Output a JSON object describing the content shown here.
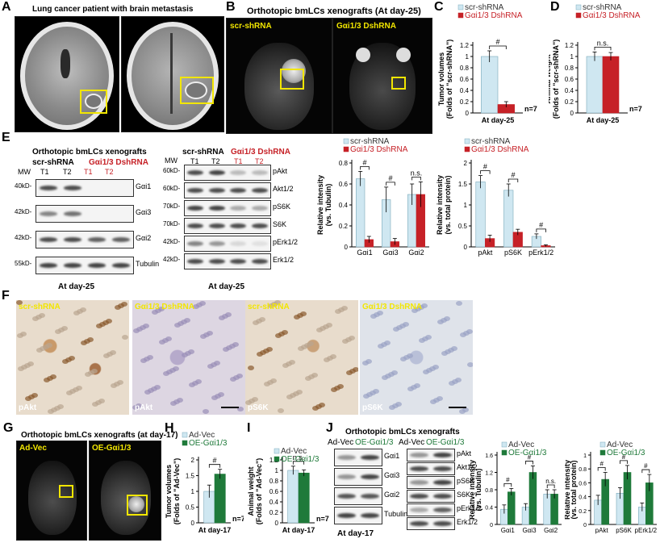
{
  "panels": {
    "A": {
      "label": "A",
      "title": "Lung cancer patient with brain metastasis"
    },
    "B": {
      "label": "B",
      "title": "Orthotopic bmLCs xenografts (At day-25)",
      "left": "scr-shRNA",
      "right": "Gαi1/3 DshRNA"
    },
    "C": {
      "label": "C",
      "ylabel1": "Tumor volumes",
      "ylabel2": "(Folds of \"scr-shRNA\")",
      "xlabel": "At day-25",
      "legend": [
        "scr-shRNA",
        "Gαi1/3 DshRNA"
      ],
      "sig": "#",
      "n": "n=7",
      "ticks": [
        "0",
        "0.2",
        "0.4",
        "0.6",
        "0.8",
        "1",
        "1.2"
      ]
    },
    "D": {
      "label": "D",
      "ylabel1": "Animal weight",
      "ylabel2": "(Folds of \"scr-shRNA\")",
      "xlabel": "At day-25",
      "legend": [
        "scr-shRNA",
        "Gαi1/3 DshRNA"
      ],
      "sig": "n.s.",
      "n": "n=7",
      "ticks": [
        "0",
        "0.2",
        "0.4",
        "0.6",
        "0.8",
        "1",
        "1.2"
      ]
    },
    "E": {
      "label": "E",
      "blot1_title": "Orthotopic bmLCs xenografts",
      "blot1_groups": [
        "scr-shRNA",
        "Gαi1/3 DshRNA"
      ],
      "mw": "MW",
      "lanes": [
        "T1",
        "T2",
        "T1",
        "T2"
      ],
      "blot1_rows": [
        {
          "kd": "40kD-",
          "name": "Gαi1"
        },
        {
          "kd": "42kD-",
          "name": "Gαi3"
        },
        {
          "kd": "42kD-",
          "name": "Gαi2"
        },
        {
          "kd": "55kD-",
          "name": "Tubulin"
        }
      ],
      "blot1_foot": "At day-25",
      "blot2_groups": [
        "scr-shRNA",
        "Gαi1/3 DshRNA"
      ],
      "blot2_rows": [
        {
          "kd": "60kD-",
          "name": "pAkt"
        },
        {
          "kd": "60kD-",
          "name": "Akt1/2"
        },
        {
          "kd": "70kD-",
          "name": "pS6K"
        },
        {
          "kd": "70kD-",
          "name": "S6K"
        },
        {
          "kd": "42kD-",
          "name": "pErk1/2"
        },
        {
          "kd": "42kD-",
          "name": "Erk1/2"
        }
      ],
      "blot2_foot": "At day-25",
      "chart1_ylabel1": "Relative intensity",
      "chart1_ylabel2": "(vs. Tubulin)",
      "chart2_ylabel1": "Relative intensity",
      "chart2_ylabel2": "(vs. total protein)",
      "legend": [
        "scr-shRNA",
        "Gαi1/3 DshRNA"
      ]
    },
    "F": {
      "label": "F",
      "tiles": [
        "scr-shRNA",
        "Gαi1/3 DshRNA",
        "scr-shRNA",
        "Gαi1/3 DshRNA"
      ],
      "stains": [
        "pAkt",
        "pAkt",
        "pS6K",
        "pS6K"
      ]
    },
    "G": {
      "label": "G",
      "title": "Orthotopic bmLCs xenografts (at day-17)",
      "left": "Ad-Vec",
      "right": "OE-Gαi1/3"
    },
    "H": {
      "label": "H",
      "ylabel1": "Tumor volumes",
      "ylabel2": "(Folds of \"Ad-Vec\")",
      "xlabel": "At day-17",
      "legend": [
        "Ad-Vec",
        "OE-Gαi1/3"
      ],
      "sig": "#",
      "n": "n=7",
      "ticks": [
        "0",
        "0.5",
        "1",
        "1.5",
        "2"
      ]
    },
    "I": {
      "label": "I",
      "ylabel1": "Animal weight",
      "ylabel2": "(Folds of \"Ad-Vec\")",
      "xlabel": "At day-17",
      "legend": [
        "Ad-Vec",
        "OE-Gαi1/3"
      ],
      "sig": "n.s.",
      "n": "n=7",
      "ticks": [
        "0",
        "0.2",
        "0.4",
        "0.6",
        "0.8",
        "1",
        "1.2"
      ]
    },
    "J": {
      "label": "J",
      "title": "Orthotopic bmLCs xenografts",
      "groups": [
        "Ad-Vec",
        "OE-Gαi1/3",
        "Ad-Vec",
        "OE-Gαi1/3"
      ],
      "blot1_rows": [
        "Gαi1",
        "Gαi3",
        "Gαi2",
        "Tubulin"
      ],
      "blot2_rows": [
        "pAkt",
        "Akt1/2",
        "pS6K",
        "S6K",
        "pErk1/2",
        "Erk1/2"
      ],
      "foot": "At day-17",
      "chart1_ylabel1": "Relative intensity",
      "chart1_ylabel2": "(vs. Tubulin)",
      "chart2_ylabel1": "Relative intensity",
      "chart2_ylabel2": "(vs. total protein)",
      "legend": [
        "Ad-Vec",
        "OE-Gαi1/3"
      ]
    }
  },
  "colors": {
    "blue": "#cfe7f1",
    "red": "#c62127",
    "green": "#1f7a3a",
    "yellow": "#f2e600"
  },
  "chart_data": [
    {
      "id": "C",
      "type": "bar",
      "categories": [
        "At day-25"
      ],
      "series": [
        {
          "name": "scr-shRNA",
          "values": [
            1.0
          ],
          "err": [
            0.1
          ]
        },
        {
          "name": "Gαi1/3 DshRNA",
          "values": [
            0.15
          ],
          "err": [
            0.05
          ]
        }
      ],
      "ylim": [
        0,
        1.2
      ]
    },
    {
      "id": "D",
      "type": "bar",
      "categories": [
        "At day-25"
      ],
      "series": [
        {
          "name": "scr-shRNA",
          "values": [
            1.0
          ],
          "err": [
            0.08
          ]
        },
        {
          "name": "Gαi1/3 DshRNA",
          "values": [
            1.0
          ],
          "err": [
            0.07
          ]
        }
      ],
      "ylim": [
        0,
        1.2
      ]
    },
    {
      "id": "E1",
      "type": "bar",
      "categories": [
        "Gαi1",
        "Gαi3",
        "Gαi2"
      ],
      "series": [
        {
          "name": "scr-shRNA",
          "values": [
            0.65,
            0.45,
            0.5
          ],
          "err": [
            0.07,
            0.12,
            0.1
          ]
        },
        {
          "name": "Gαi1/3 DshRNA",
          "values": [
            0.07,
            0.05,
            0.5
          ],
          "err": [
            0.03,
            0.03,
            0.12
          ]
        }
      ],
      "ylim": [
        0,
        0.8
      ],
      "ticks": [
        "0",
        "0.2",
        "0.4",
        "0.6",
        "0.8"
      ],
      "sig": [
        "#",
        "#",
        "n.s."
      ]
    },
    {
      "id": "E2",
      "type": "bar",
      "categories": [
        "pAkt",
        "pS6K",
        "pErk1/2"
      ],
      "series": [
        {
          "name": "scr-shRNA",
          "values": [
            1.55,
            1.35,
            0.25
          ],
          "err": [
            0.15,
            0.15,
            0.06
          ]
        },
        {
          "name": "Gαi1/3 DshRNA",
          "values": [
            0.2,
            0.35,
            0.03
          ],
          "err": [
            0.08,
            0.07,
            0.02
          ]
        }
      ],
      "ylim": [
        0,
        2
      ],
      "ticks": [
        "0",
        "0.5",
        "1",
        "1.5",
        "2"
      ],
      "sig": [
        "#",
        "#",
        "#"
      ]
    },
    {
      "id": "H",
      "type": "bar",
      "categories": [
        "At day-17"
      ],
      "series": [
        {
          "name": "Ad-Vec",
          "values": [
            1.0
          ],
          "err": [
            0.2
          ]
        },
        {
          "name": "OE-Gαi1/3",
          "values": [
            1.55
          ],
          "err": [
            0.15
          ]
        }
      ],
      "ylim": [
        0,
        2
      ]
    },
    {
      "id": "I",
      "type": "bar",
      "categories": [
        "At day-17"
      ],
      "series": [
        {
          "name": "Ad-Vec",
          "values": [
            1.0
          ],
          "err": [
            0.08
          ]
        },
        {
          "name": "OE-Gαi1/3",
          "values": [
            0.95
          ],
          "err": [
            0.06
          ]
        }
      ],
      "ylim": [
        0,
        1.2
      ]
    },
    {
      "id": "J1",
      "type": "bar",
      "categories": [
        "Gαi1",
        "Gαi3",
        "Gαi2"
      ],
      "series": [
        {
          "name": "Ad-Vec",
          "values": [
            0.35,
            0.4,
            0.7
          ],
          "err": [
            0.1,
            0.08,
            0.1
          ]
        },
        {
          "name": "OE-Gαi1/3",
          "values": [
            0.75,
            1.2,
            0.7
          ],
          "err": [
            0.08,
            0.15,
            0.1
          ]
        }
      ],
      "ylim": [
        0,
        1.6
      ],
      "ticks": [
        "0",
        "0.4",
        "0.8",
        "1.2",
        "1.6"
      ],
      "sig": [
        "#",
        "#",
        "n.s."
      ]
    },
    {
      "id": "J2",
      "type": "bar",
      "categories": [
        "pAkt",
        "pS6K",
        "pErk1/2"
      ],
      "series": [
        {
          "name": "Ad-Vec",
          "values": [
            0.35,
            0.45,
            0.25
          ],
          "err": [
            0.07,
            0.08,
            0.06
          ]
        },
        {
          "name": "OE-Gαi1/3",
          "values": [
            0.65,
            0.75,
            0.6
          ],
          "err": [
            0.1,
            0.1,
            0.12
          ]
        }
      ],
      "ylim": [
        0,
        1
      ],
      "ticks": [
        "0",
        "0.2",
        "0.4",
        "0.6",
        "0.8",
        "1"
      ],
      "sig": [
        "#",
        "#",
        "#"
      ]
    }
  ]
}
